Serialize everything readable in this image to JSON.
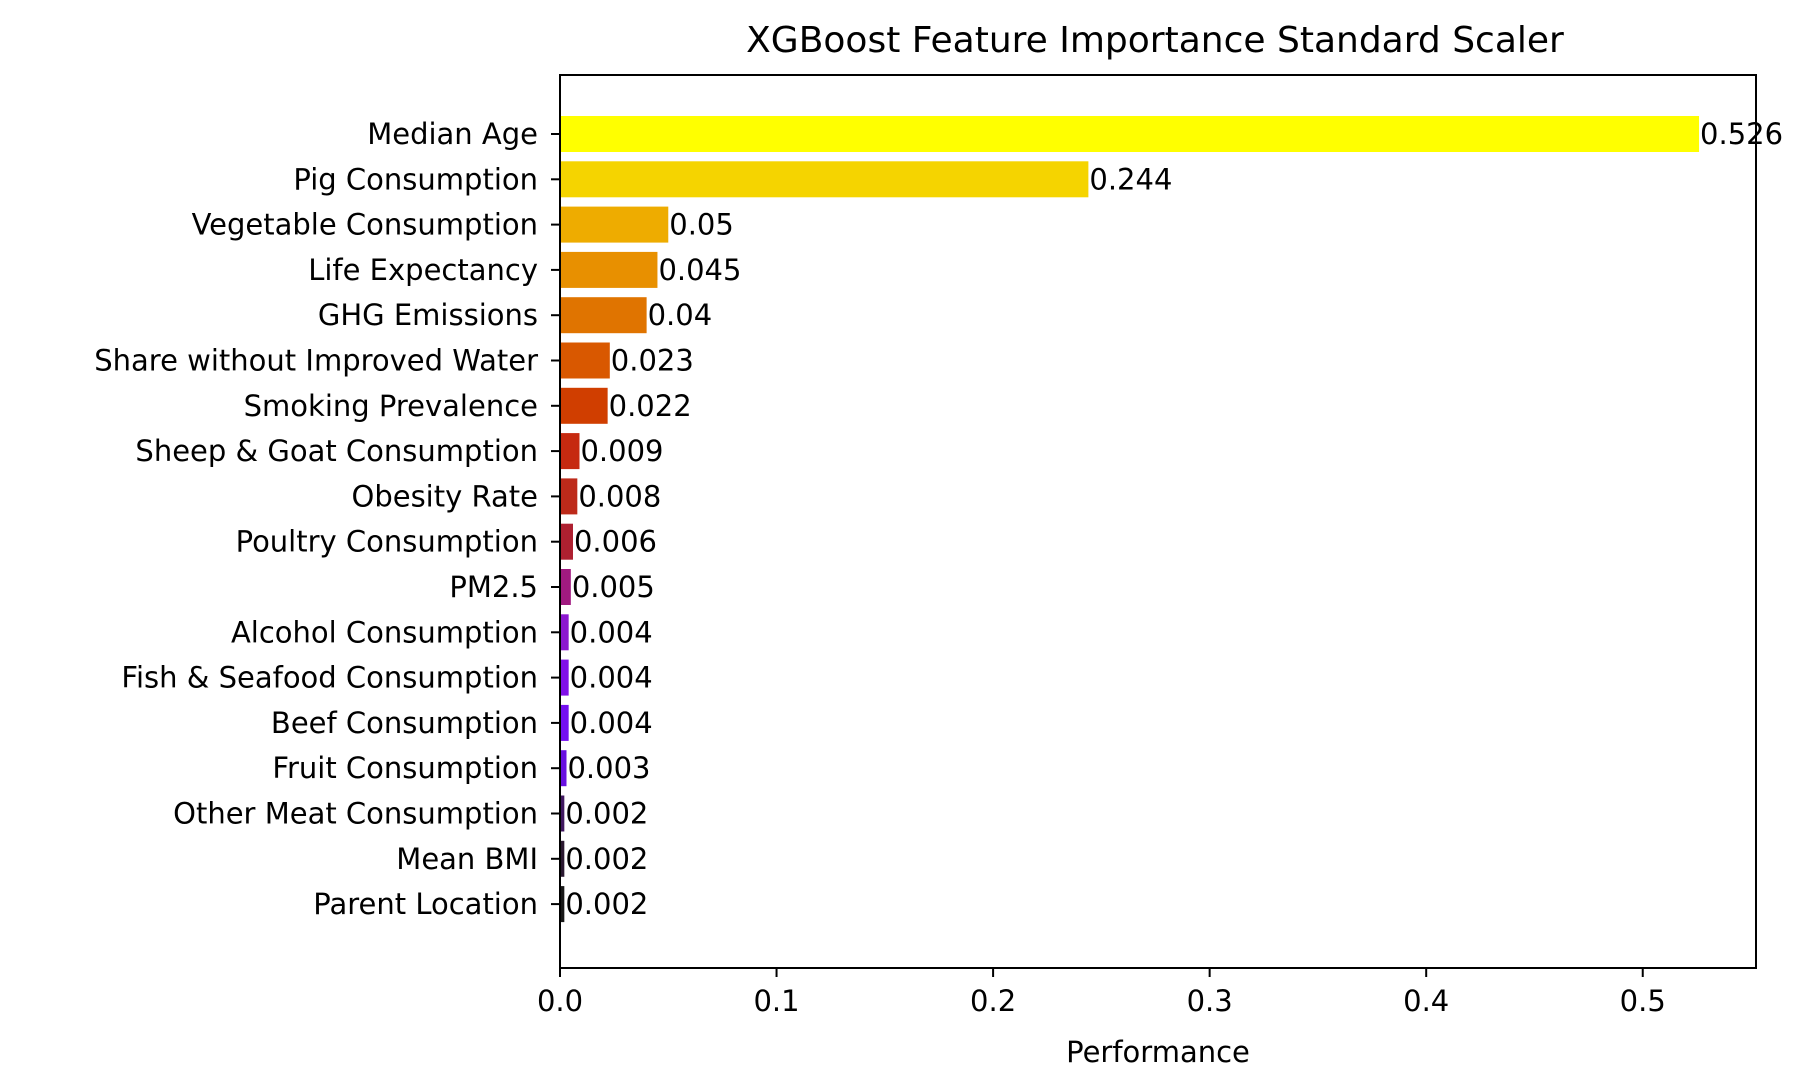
{
  "chart_data": {
    "type": "bar",
    "orientation": "horizontal",
    "title": "XGBoost Feature Importance Standard Scaler",
    "xlabel": "Performance",
    "ylabel": "",
    "xlim": [
      0,
      0.5523
    ],
    "xticks": [
      "0.0",
      "0.1",
      "0.2",
      "0.3",
      "0.4",
      "0.5"
    ],
    "grid": false,
    "categories": [
      "Median Age",
      "Pig Consumption",
      "Vegetable Consumption",
      "Life Expectancy",
      "GHG Emissions",
      "Share without Improved Water",
      "Smoking Prevalence",
      "Sheep & Goat Consumption",
      "Obesity Rate",
      "Poultry Consumption",
      "PM2.5",
      "Alcohol Consumption",
      "Fish & Seafood Consumption",
      "Beef Consumption",
      "Fruit Consumption",
      "Other Meat Consumption",
      "Mean BMI",
      "Parent Location"
    ],
    "values": [
      0.526,
      0.244,
      0.05,
      0.045,
      0.04,
      0.023,
      0.022,
      0.009,
      0.008,
      0.006,
      0.005,
      0.004,
      0.004,
      0.004,
      0.003,
      0.002,
      0.002,
      0.002
    ],
    "value_labels": [
      "0.526",
      "0.244",
      "0.05",
      "0.045",
      "0.04",
      "0.023",
      "0.022",
      "0.009",
      "0.008",
      "0.006",
      "0.005",
      "0.004",
      "0.004",
      "0.004",
      "0.003",
      "0.002",
      "0.002",
      "0.002"
    ],
    "colors": [
      "#ffff00",
      "#f5d400",
      "#eeac00",
      "#e89000",
      "#e07400",
      "#d95800",
      "#d03e00",
      "#c62a10",
      "#bd2a1a",
      "#ae2030",
      "#a01a80",
      "#8c18d0",
      "#8010e8",
      "#7410f0",
      "#6810e0",
      "#401860",
      "#2a1830",
      "#181818"
    ]
  }
}
